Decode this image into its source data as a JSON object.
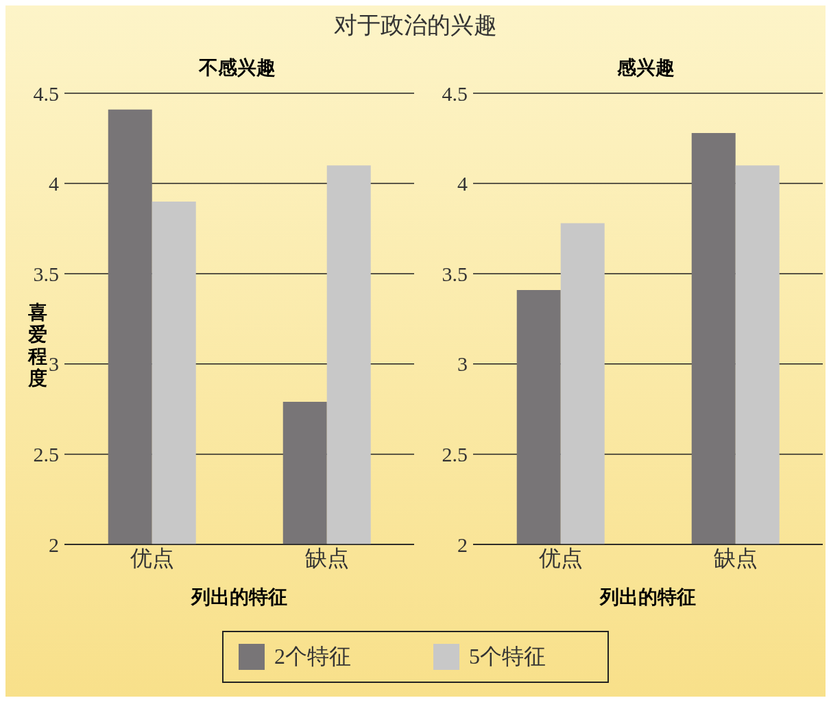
{
  "chart_data": [
    {
      "type": "bar",
      "title": "不感兴趣",
      "annotations": [
        "对于政治的兴趣"
      ],
      "xlabel": "列出的特征",
      "ylabel": "喜爱程度",
      "categories": [
        "优点",
        "缺点"
      ],
      "series": [
        {
          "name": "2个特征",
          "color": "#787577",
          "values": [
            4.41,
            2.79
          ]
        },
        {
          "name": "5个特征",
          "color": "#c8c8c8",
          "values": [
            3.9,
            4.1
          ]
        }
      ],
      "ylim": [
        2,
        4.5
      ],
      "yticks": [
        2,
        2.5,
        3,
        3.5,
        4,
        4.5
      ],
      "grid": "y",
      "legend": "bottom"
    },
    {
      "type": "bar",
      "title": "感兴趣",
      "xlabel": "列出的特征",
      "categories": [
        "优点",
        "缺点"
      ],
      "series": [
        {
          "color": "#787577",
          "values": [
            3.41,
            4.28
          ]
        },
        {
          "color": "#c8c8c8",
          "values": [
            3.78,
            4.1
          ]
        }
      ],
      "ylim": [
        2,
        4.5
      ],
      "yticks": [
        2,
        2.5,
        3,
        3.5,
        4,
        4.5
      ],
      "grid": "y"
    }
  ]
}
